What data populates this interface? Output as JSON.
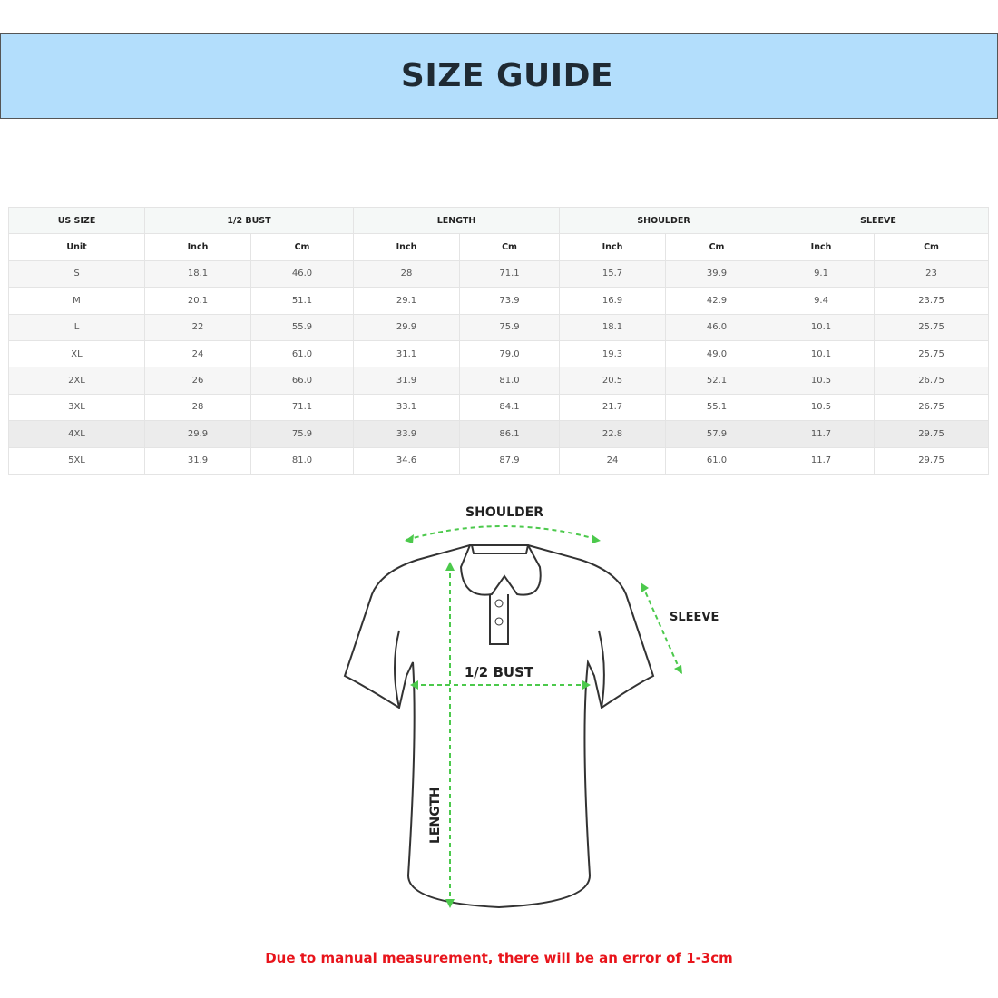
{
  "title": "SIZE GUIDE",
  "table": {
    "groups": [
      "US SIZE",
      "1/2 BUST",
      "LENGTH",
      "SHOULDER",
      "SLEEVE"
    ],
    "units": [
      "Unit",
      "Inch",
      "Cm",
      "Inch",
      "Cm",
      "Inch",
      "Cm",
      "Inch",
      "Cm"
    ],
    "rows": [
      [
        "S",
        "18.1",
        "46.0",
        "28",
        "71.1",
        "15.7",
        "39.9",
        "9.1",
        "23"
      ],
      [
        "M",
        "20.1",
        "51.1",
        "29.1",
        "73.9",
        "16.9",
        "42.9",
        "9.4",
        "23.75"
      ],
      [
        "L",
        "22",
        "55.9",
        "29.9",
        "75.9",
        "18.1",
        "46.0",
        "10.1",
        "25.75"
      ],
      [
        "XL",
        "24",
        "61.0",
        "31.1",
        "79.0",
        "19.3",
        "49.0",
        "10.1",
        "25.75"
      ],
      [
        "2XL",
        "26",
        "66.0",
        "31.9",
        "81.0",
        "20.5",
        "52.1",
        "10.5",
        "26.75"
      ],
      [
        "3XL",
        "28",
        "71.1",
        "33.1",
        "84.1",
        "21.7",
        "55.1",
        "10.5",
        "26.75"
      ],
      [
        "4XL",
        "29.9",
        "75.9",
        "33.9",
        "86.1",
        "22.8",
        "57.9",
        "11.7",
        "29.75"
      ],
      [
        "5XL",
        "31.9",
        "81.0",
        "34.6",
        "87.9",
        "24",
        "61.0",
        "11.7",
        "29.75"
      ]
    ]
  },
  "diagram": {
    "shoulder": "SHOULDER",
    "sleeve": "SLEEVE",
    "bust": "1/2 BUST",
    "length": "LENGTH",
    "arrow_color": "#4cc94c"
  },
  "note": "Due to manual measurement, there will be an error of 1-3cm"
}
